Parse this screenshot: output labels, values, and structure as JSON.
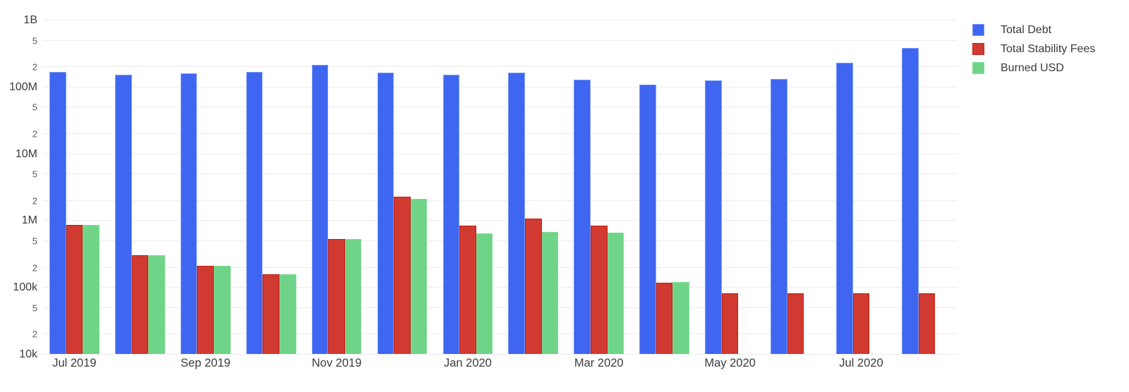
{
  "chart_data": {
    "type": "bar",
    "title": "",
    "grid": true,
    "legend_position": "top-right",
    "x_axis": {
      "categories": [
        "Jul 2019",
        "Aug 2019",
        "Sep 2019",
        "Oct 2019",
        "Nov 2019",
        "Dec 2019",
        "Jan 2020",
        "Feb 2020",
        "Mar 2020",
        "Apr 2020",
        "May 2020",
        "Jun 2020",
        "Jul 2020",
        "Aug 2020"
      ],
      "shown_tick_labels": [
        "Jul 2019",
        "Sep 2019",
        "Nov 2019",
        "Jan 2020",
        "Mar 2020",
        "May 2020",
        "Jul 2020"
      ],
      "label_every_n_groups": 2
    },
    "y_axis": {
      "scale": "log",
      "min": 10000,
      "max": 1000000000,
      "ticks": [
        {
          "value": 10000,
          "label": "10k",
          "major": true
        },
        {
          "value": 20000,
          "label": "2",
          "major": false
        },
        {
          "value": 50000,
          "label": "5",
          "major": false
        },
        {
          "value": 100000,
          "label": "100k",
          "major": true
        },
        {
          "value": 200000,
          "label": "2",
          "major": false
        },
        {
          "value": 500000,
          "label": "5",
          "major": false
        },
        {
          "value": 1000000,
          "label": "1M",
          "major": true
        },
        {
          "value": 2000000,
          "label": "2",
          "major": false
        },
        {
          "value": 5000000,
          "label": "5",
          "major": false
        },
        {
          "value": 10000000,
          "label": "10M",
          "major": true
        },
        {
          "value": 20000000,
          "label": "2",
          "major": false
        },
        {
          "value": 50000000,
          "label": "5",
          "major": false
        },
        {
          "value": 100000000,
          "label": "100M",
          "major": true
        },
        {
          "value": 200000000,
          "label": "2",
          "major": false
        },
        {
          "value": 500000000,
          "label": "5",
          "major": false
        },
        {
          "value": 1000000000,
          "label": "1B",
          "major": true
        }
      ]
    },
    "series": [
      {
        "name": "Total Debt",
        "color": "#3e66f0",
        "border_color": "#7c9cf6",
        "values": [
          165000000,
          150000000,
          158000000,
          165000000,
          212000000,
          160000000,
          150000000,
          160000000,
          128000000,
          108000000,
          124000000,
          131000000,
          228000000,
          375000000
        ]
      },
      {
        "name": "Total Stability Fees",
        "color": "#d13a30",
        "border_color": "#c01f10",
        "values": [
          860000,
          302000,
          207000,
          155000,
          520000,
          2250000,
          840000,
          1070000,
          840000,
          117000,
          80000,
          80000,
          80000,
          80000
        ]
      },
      {
        "name": "Burned USD",
        "color": "#6fd488",
        "border_color": "#85dc97",
        "values": [
          860000,
          302000,
          207000,
          155000,
          520000,
          2100000,
          640000,
          665000,
          650000,
          120000,
          null,
          null,
          null,
          null
        ]
      }
    ]
  }
}
